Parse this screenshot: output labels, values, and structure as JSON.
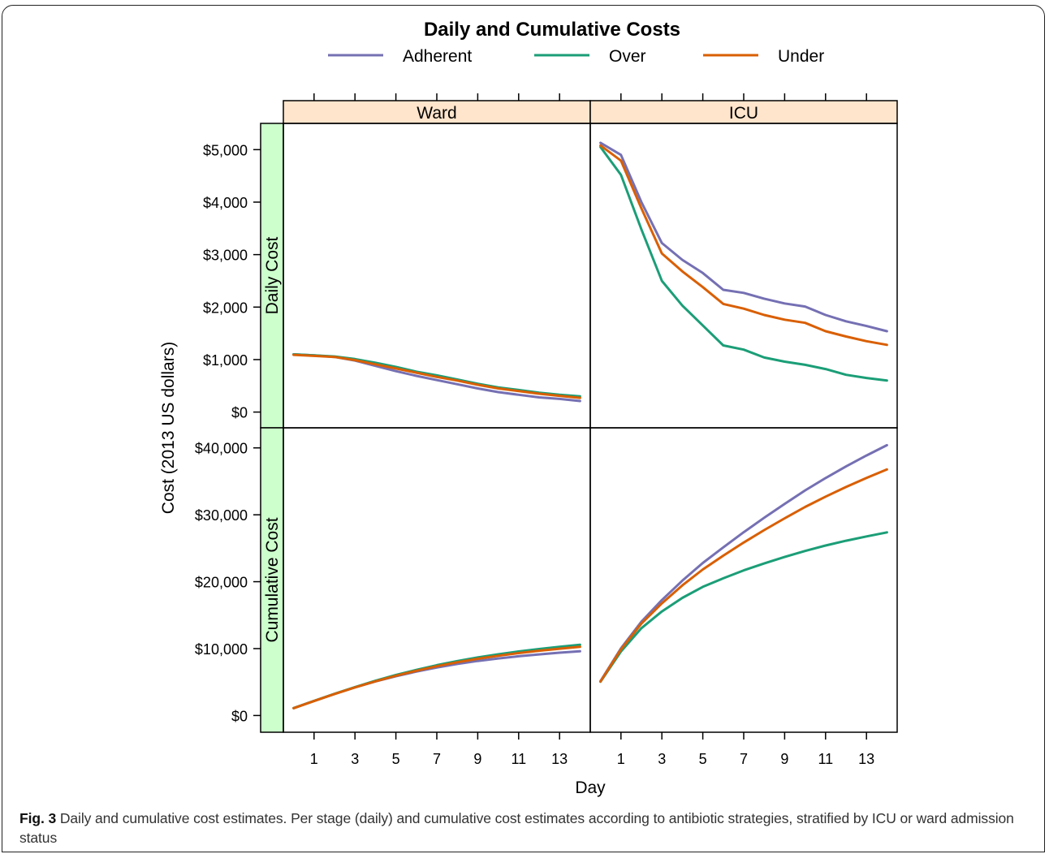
{
  "chart_data": {
    "type": "line",
    "title": "Daily and Cumulative Costs",
    "xlabel": "Day",
    "ylabel": "Cost (2013 US dollars)",
    "x_ticks": [
      1,
      3,
      5,
      7,
      9,
      11,
      13
    ],
    "columns": [
      "Ward",
      "ICU"
    ],
    "rows": [
      "Daily Cost",
      "Cumulative Cost"
    ],
    "legend": {
      "position": "top",
      "entries": [
        "Adherent",
        "Over",
        "Under"
      ]
    },
    "colors": {
      "Adherent": "#7570b3",
      "Over": "#1b9e77",
      "Under": "#d95f02"
    },
    "x": [
      0,
      1,
      2,
      3,
      4,
      5,
      6,
      7,
      8,
      9,
      10,
      11,
      12,
      13,
      14
    ],
    "panels": [
      {
        "row": "Daily Cost",
        "column": "Ward",
        "ylim": [
          -300,
          5500
        ],
        "yticks": [
          0,
          1000,
          2000,
          3000,
          4000,
          5000
        ],
        "ytick_labels": [
          "$0",
          "$1,000",
          "$2,000",
          "$3,000",
          "$4,000",
          "$5,000"
        ],
        "series": [
          {
            "name": "Adherent",
            "values": [
              1100,
              1080,
              1050,
              980,
              880,
              780,
              690,
              610,
              530,
              450,
              380,
              330,
              280,
              250,
              210
            ]
          },
          {
            "name": "Over",
            "values": [
              1100,
              1080,
              1060,
              1010,
              940,
              860,
              770,
              700,
              620,
              540,
              470,
              420,
              370,
              330,
              300
            ]
          },
          {
            "name": "Under",
            "values": [
              1090,
              1070,
              1050,
              990,
              910,
              830,
              750,
              670,
              600,
              520,
              450,
              400,
              350,
              310,
              270
            ]
          }
        ]
      },
      {
        "row": "Daily Cost",
        "column": "ICU",
        "ylim": [
          -300,
          5500
        ],
        "series": [
          {
            "name": "Adherent",
            "values": [
              5130,
              4900,
              4000,
              3220,
              2900,
              2650,
              2330,
              2270,
              2160,
              2070,
              2010,
              1850,
              1730,
              1640,
              1540
            ]
          },
          {
            "name": "Over",
            "values": [
              5050,
              4520,
              3480,
              2500,
              2030,
              1650,
              1270,
              1190,
              1040,
              960,
              900,
              820,
              710,
              650,
              600
            ]
          },
          {
            "name": "Under",
            "values": [
              5080,
              4790,
              3880,
              3020,
              2680,
              2380,
              2060,
              1970,
              1850,
              1760,
              1700,
              1540,
              1440,
              1350,
              1280
            ]
          }
        ]
      },
      {
        "row": "Cumulative Cost",
        "column": "Ward",
        "ylim": [
          -2500,
          43000
        ],
        "yticks": [
          0,
          10000,
          20000,
          30000,
          40000
        ],
        "ytick_labels": [
          "$0",
          "$10,000",
          "$20,000",
          "$30,000",
          "$40,000"
        ],
        "series": [
          {
            "name": "Adherent",
            "values": [
              1100,
              2180,
              3230,
              4210,
              5090,
              5870,
              6560,
              7170,
              7700,
              8150,
              8530,
              8860,
              9140,
              9390,
              9600
            ]
          },
          {
            "name": "Over",
            "values": [
              1100,
              2180,
              3240,
              4250,
              5190,
              6050,
              6820,
              7520,
              8140,
              8680,
              9150,
              9570,
              9940,
              10270,
              10570
            ]
          },
          {
            "name": "Under",
            "values": [
              1090,
              2160,
              3210,
              4200,
              5110,
              5940,
              6690,
              7360,
              7960,
              8480,
              8930,
              9330,
              9680,
              9990,
              10260
            ]
          }
        ]
      },
      {
        "row": "Cumulative Cost",
        "column": "ICU",
        "ylim": [
          -2500,
          43000
        ],
        "series": [
          {
            "name": "Adherent",
            "values": [
              5130,
              10030,
              14030,
              17250,
              20150,
              22800,
              25130,
              27400,
              29560,
              31630,
              33640,
              35490,
              37220,
              38860,
              40400
            ]
          },
          {
            "name": "Over",
            "values": [
              5050,
              9570,
              13050,
              15550,
              17580,
              19230,
              20500,
              21690,
              22730,
              23690,
              24590,
              25410,
              26120,
              26770,
              27370
            ]
          },
          {
            "name": "Under",
            "values": [
              5080,
              9870,
              13750,
              16770,
              19450,
              21830,
              23890,
              25860,
              27710,
              29470,
              31170,
              32710,
              34150,
              35500,
              36780
            ]
          }
        ]
      }
    ]
  },
  "caption": {
    "label": "Fig. 3",
    "text": "Daily and cumulative cost estimates. Per stage (daily) and cumulative cost estimates according to antibiotic strategies, stratified by ICU or ward admission status"
  }
}
